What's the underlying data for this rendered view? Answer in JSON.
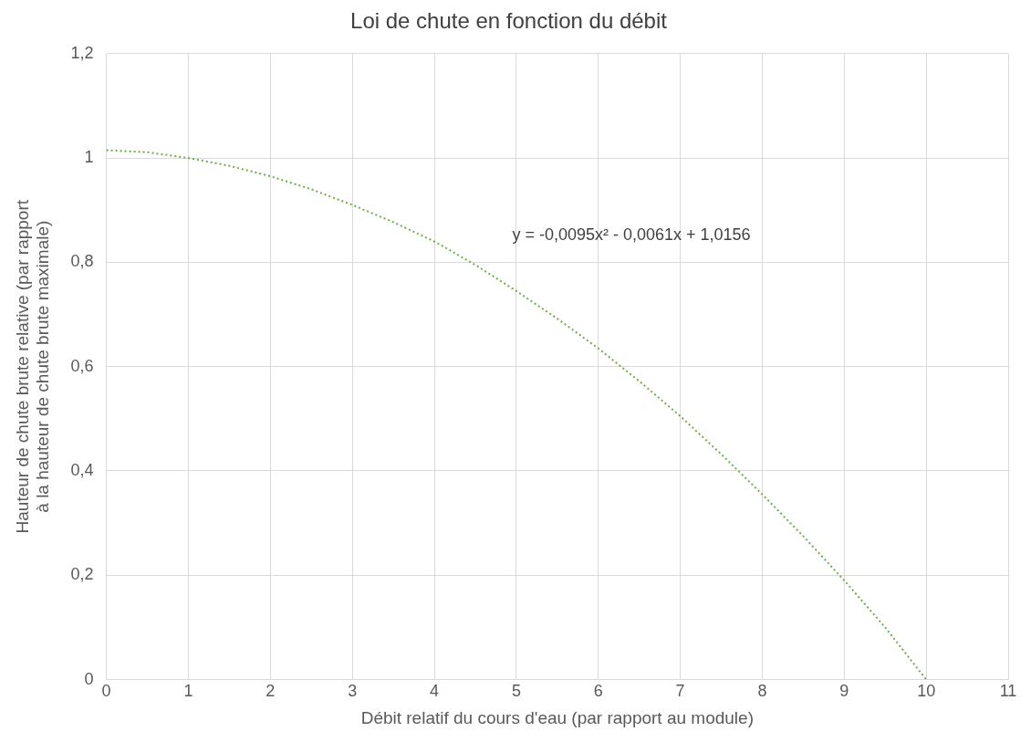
{
  "chart_data": {
    "type": "line",
    "title": "Loi de chute en fonction du débit",
    "xlabel": "Débit relatif du cours d'eau (par rapport au module)",
    "ylabel": "Hauteur de chute brute relative (par rapport à la hauteur de chute brute maximale)",
    "annotations": [
      "y = -0,0095x² - 0,0061x + 1,0156"
    ],
    "x": [
      0,
      0.5,
      1,
      1.5,
      2,
      2.5,
      3,
      3.5,
      4,
      4.5,
      5,
      5.5,
      6,
      6.5,
      7,
      7.5,
      8,
      8.5,
      9,
      9.5,
      10
    ],
    "series": [
      {
        "color": "#70ad47",
        "values": [
          1.015,
          1.011,
          1.0,
          0.985,
          0.965,
          0.94,
          0.91,
          0.877,
          0.84,
          0.795,
          0.745,
          0.692,
          0.635,
          0.572,
          0.505,
          0.432,
          0.355,
          0.275,
          0.19,
          0.1,
          0.0
        ]
      }
    ],
    "xlim": [
      0,
      11
    ],
    "xticks": [
      0,
      1,
      2,
      3,
      4,
      5,
      6,
      7,
      8,
      9,
      10,
      11
    ],
    "ylim": [
      0,
      1.2
    ],
    "yticks": [
      0,
      {
        "value": 0.2,
        "label": "0,2"
      },
      {
        "value": 0.4,
        "label": "0,4"
      },
      {
        "value": 0.6,
        "label": "0,6"
      },
      {
        "value": 0.8,
        "label": "0,8"
      },
      1,
      {
        "value": 1.2,
        "label": "1,2"
      }
    ],
    "grid": true,
    "legend": false,
    "marker": "none",
    "line_style": "dotted"
  }
}
